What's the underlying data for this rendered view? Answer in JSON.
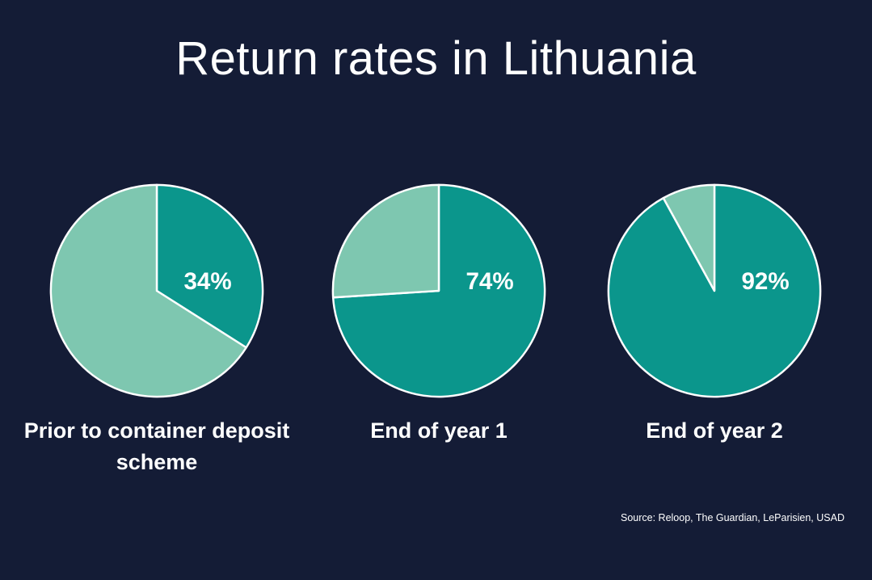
{
  "slide": {
    "title": "Return rates in Lithuania",
    "source": "Source: Reloop, The Guardian, LeParisien, USAD"
  },
  "chart_data": [
    {
      "type": "pie",
      "caption": "Prior to container deposit scheme",
      "slices": [
        {
          "name": "",
          "value": 34,
          "label": "34%",
          "color": "#0b968c"
        },
        {
          "name": "",
          "value": 66,
          "label": "",
          "color": "#7ec7b0"
        }
      ]
    },
    {
      "type": "pie",
      "caption": "End of year 1",
      "slices": [
        {
          "name": "",
          "value": 74,
          "label": "74%",
          "color": "#0b968c"
        },
        {
          "name": "",
          "value": 26,
          "label": "",
          "color": "#7ec7b0"
        }
      ]
    },
    {
      "type": "pie",
      "caption": "End of year 2",
      "slices": [
        {
          "name": "",
          "value": 92,
          "label": "92%",
          "color": "#0b968c"
        },
        {
          "name": "",
          "value": 8,
          "label": "",
          "color": "#7ec7b0"
        }
      ]
    }
  ]
}
